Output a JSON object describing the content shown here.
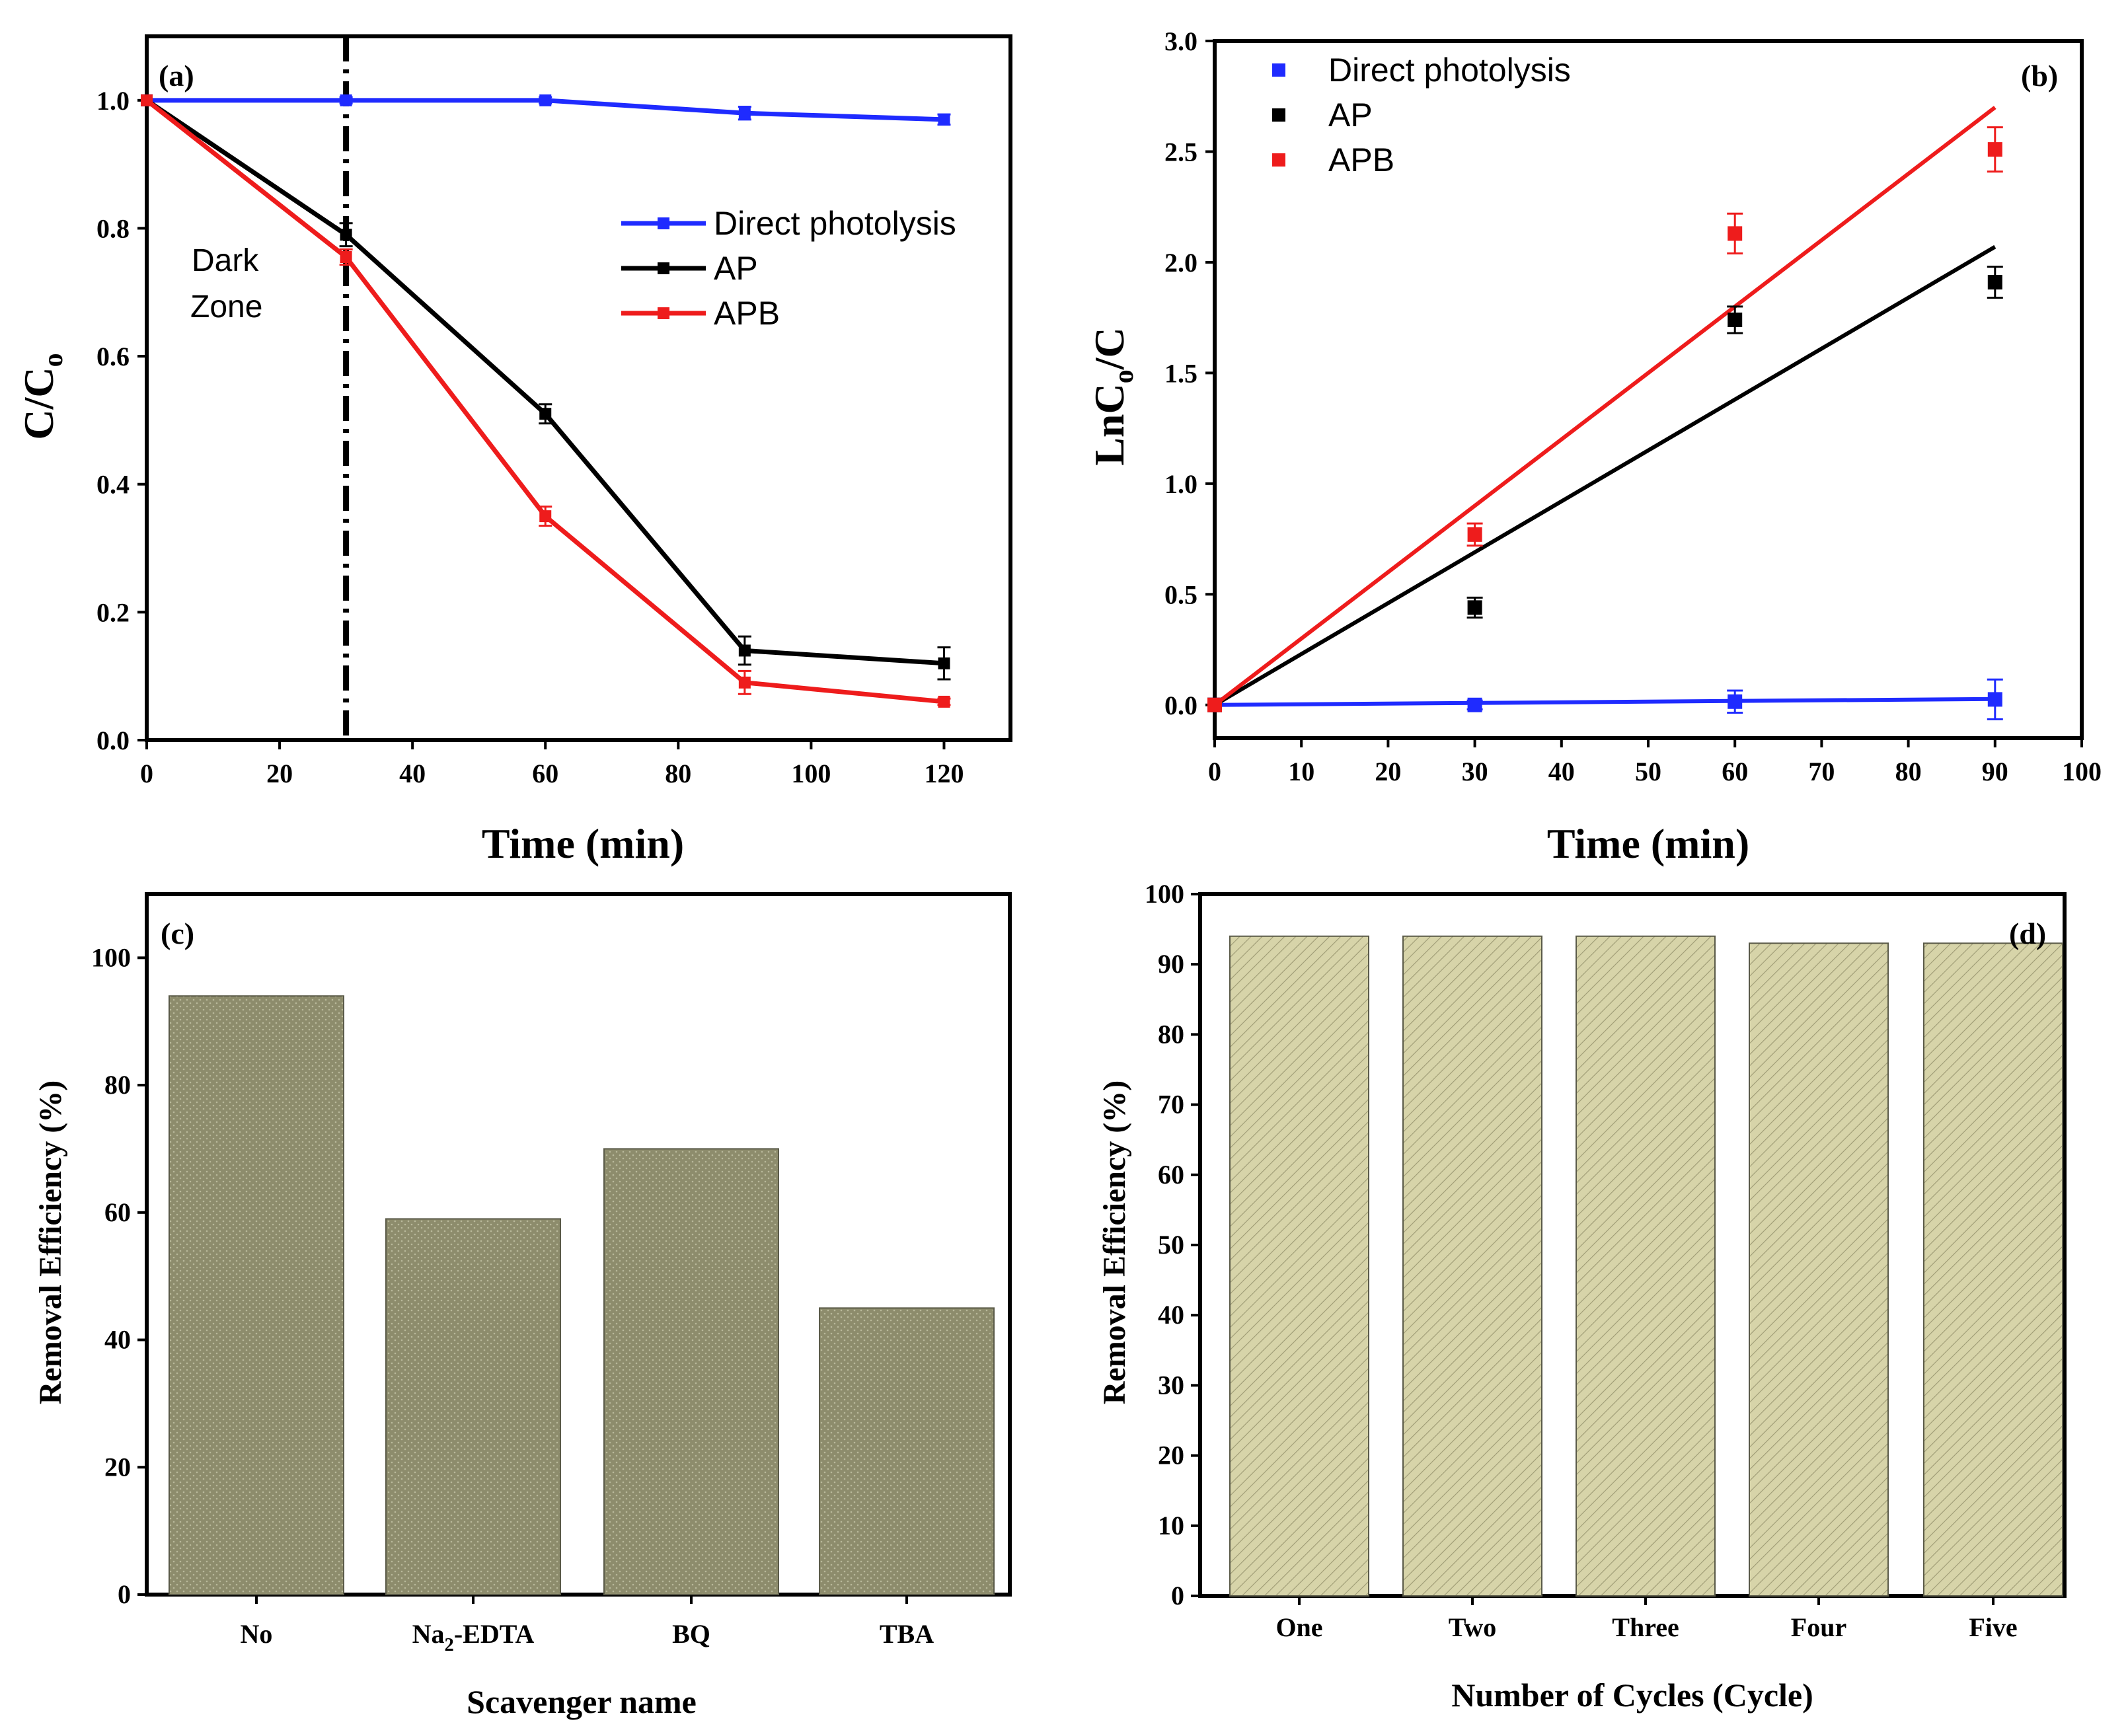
{
  "chart_data": [
    {
      "id": "a",
      "type": "line",
      "panel_label": "(a)",
      "xlabel": "Time (min)",
      "ylabel_base": "C/C",
      "ylabel_sub": "o",
      "xlim": [
        0,
        130
      ],
      "ylim": [
        0,
        1.1
      ],
      "xticks": [
        0,
        20,
        40,
        60,
        80,
        100,
        120
      ],
      "yticks": [
        "0.0",
        "0.2",
        "0.4",
        "0.6",
        "0.8",
        "1.0"
      ],
      "annotation_line1": "Dark",
      "annotation_line2": "Zone",
      "dark_zone_x": 30,
      "legend_position": "middle-right",
      "series": [
        {
          "name": "Direct photolysis",
          "color": "#1f2bff",
          "x": [
            0,
            30,
            60,
            90,
            120
          ],
          "y": [
            1.0,
            1.0,
            1.0,
            0.98,
            0.97
          ],
          "err": [
            0,
            0.005,
            0.005,
            0.01,
            0.008
          ]
        },
        {
          "name": "AP",
          "color": "#000000",
          "x": [
            0,
            30,
            60,
            90,
            120
          ],
          "y": [
            1.0,
            0.79,
            0.51,
            0.14,
            0.12
          ],
          "err": [
            0,
            0.018,
            0.015,
            0.022,
            0.025
          ]
        },
        {
          "name": "APB",
          "color": "#ee1c1c",
          "x": [
            0,
            30,
            60,
            90,
            120
          ],
          "y": [
            1.0,
            0.755,
            0.35,
            0.09,
            0.06
          ],
          "err": [
            0,
            0.012,
            0.015,
            0.018,
            0.005
          ]
        }
      ]
    },
    {
      "id": "b",
      "type": "scatter",
      "panel_label": "(b)",
      "xlabel": "Time (min)",
      "ylabel_base": "LnC",
      "ylabel_sub": "o",
      "ylabel_tail": "/C",
      "xlim": [
        0,
        100
      ],
      "ylim": [
        -0.15,
        3.0
      ],
      "xticks": [
        0,
        10,
        20,
        30,
        40,
        50,
        60,
        70,
        80,
        90,
        100
      ],
      "yticks": [
        "0.0",
        "0.5",
        "1.0",
        "1.5",
        "2.0",
        "2.5",
        "3.0"
      ],
      "legend_position": "top-left",
      "series": [
        {
          "name": "Direct photolysis",
          "color": "#1f2bff",
          "x": [
            0,
            30,
            60,
            90
          ],
          "y": [
            0,
            0.0,
            0.015,
            0.025
          ],
          "err": [
            0,
            0.02,
            0.05,
            0.09
          ],
          "fit": [
            0,
            0.0003
          ]
        },
        {
          "name": "AP",
          "color": "#000000",
          "x": [
            0,
            30,
            60,
            90
          ],
          "y": [
            0,
            0.44,
            1.74,
            1.91
          ],
          "err": [
            0,
            0.045,
            0.06,
            0.07
          ],
          "fit": [
            0,
            0.023
          ]
        },
        {
          "name": "APB",
          "color": "#ee1c1c",
          "x": [
            0,
            30,
            60,
            90
          ],
          "y": [
            0,
            0.77,
            2.13,
            2.51
          ],
          "err": [
            0,
            0.05,
            0.09,
            0.1
          ],
          "fit": [
            0,
            0.03
          ]
        }
      ]
    },
    {
      "id": "c",
      "type": "bar",
      "panel_label": "(c)",
      "xlabel": "Scavenger name",
      "ylabel": "Removal Efficiency (%)",
      "ylim": [
        0,
        110
      ],
      "yticks": [
        "0",
        "20",
        "40",
        "60",
        "80",
        "100"
      ],
      "categories": [
        "No",
        "Na2-EDTA",
        "BQ",
        "TBA"
      ],
      "category_display": [
        [
          "No",
          "",
          ""
        ],
        [
          "Na",
          "2",
          "-EDTA"
        ],
        [
          "BQ",
          "",
          ""
        ],
        [
          "TBA",
          "",
          ""
        ]
      ],
      "values": [
        94,
        59,
        70,
        45
      ],
      "color": "#8c8c6b"
    },
    {
      "id": "d",
      "type": "bar",
      "panel_label": "(d)",
      "xlabel": "Number of Cycles (Cycle)",
      "ylabel": "Removal Efficiency (%)",
      "ylim": [
        0,
        100
      ],
      "yticks": [
        "0",
        "10",
        "20",
        "30",
        "40",
        "50",
        "60",
        "70",
        "80",
        "90",
        "100"
      ],
      "categories": [
        "One",
        "Two",
        "Three",
        "Four",
        "Five"
      ],
      "values": [
        94,
        94,
        94,
        93,
        93
      ],
      "color": "#d6d3a6"
    }
  ]
}
